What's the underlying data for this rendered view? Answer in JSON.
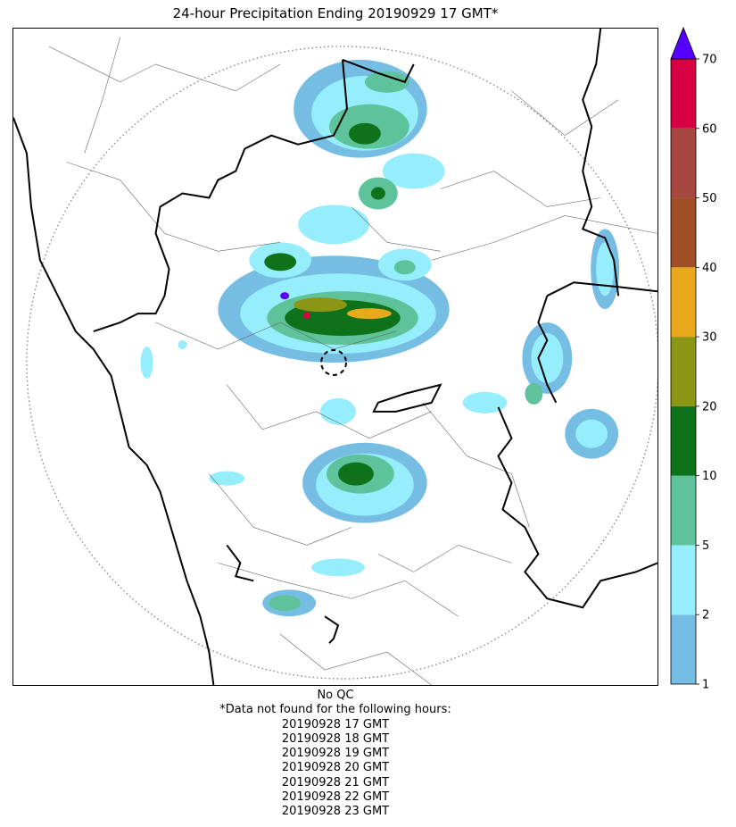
{
  "title": "24-hour Precipitation Ending 20190929 17 GMT*",
  "footer": {
    "qc": "No QC",
    "note": "*Data not found for the following hours:",
    "missing_hours": [
      "20190928 17 GMT",
      "20190928 18 GMT",
      "20190928 19 GMT",
      "20190928 20 GMT",
      "20190928 21 GMT",
      "20190928 22 GMT",
      "20190928 23 GMT"
    ]
  },
  "colorbar": {
    "levels": [
      1,
      2,
      5,
      10,
      20,
      30,
      40,
      50,
      60,
      70
    ],
    "colors": [
      "#76bde3",
      "#96eefc",
      "#5ec39a",
      "#0e721b",
      "#8b9614",
      "#e8a91b",
      "#9e4f26",
      "#a6473f",
      "#d60042"
    ],
    "extend_color": "#5500ff"
  },
  "colors": {
    "coast_border": "#000000",
    "district": "#666666",
    "range_ring": "#888888"
  }
}
